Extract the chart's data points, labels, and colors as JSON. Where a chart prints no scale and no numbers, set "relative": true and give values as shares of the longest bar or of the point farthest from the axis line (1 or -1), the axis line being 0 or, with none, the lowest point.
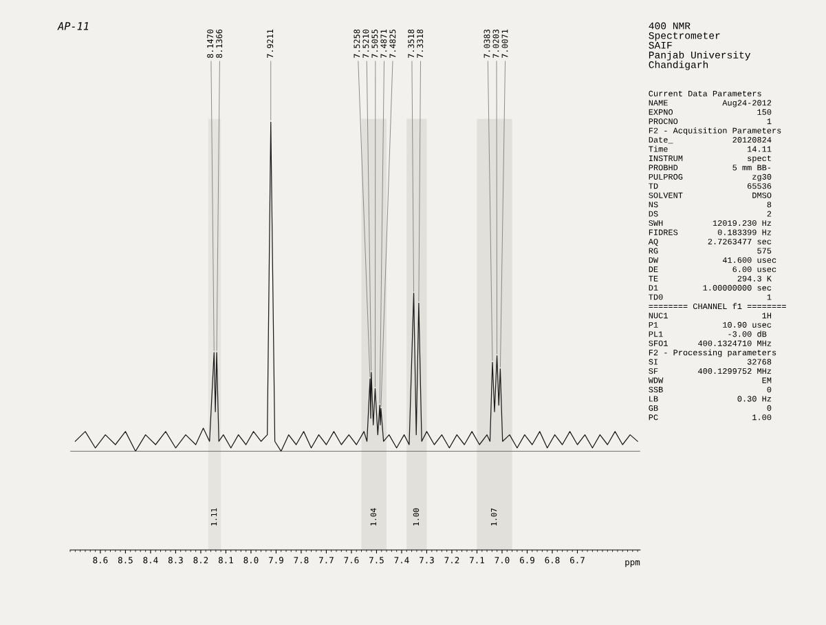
{
  "chart_data": {
    "type": "line",
    "title": "AP-11",
    "xlabel": "ppm",
    "relative": true,
    "xlim": [
      8.72,
      6.45
    ],
    "xticks": [
      8.6,
      8.5,
      8.4,
      8.3,
      8.2,
      8.1,
      {
        "value": 8,
        "label": "8.0"
      },
      7.9,
      7.8,
      7.7,
      7.6,
      7.5,
      7.4,
      7.3,
      7.2,
      7.1,
      {
        "value": 7,
        "label": "7.0"
      },
      6.9,
      6.8,
      6.7
    ],
    "bands": [
      {
        "axis": "x",
        "from": 8.17,
        "to": 8.12,
        "label": "1.11",
        "color": "#e6e4de"
      },
      {
        "axis": "x",
        "from": 7.56,
        "to": 7.46,
        "label": "1.04",
        "color": "#e2e0da"
      },
      {
        "axis": "x",
        "from": 7.38,
        "to": 7.3,
        "label": "1.00",
        "color": "#e2e0da"
      },
      {
        "axis": "x",
        "from": 7.1,
        "to": 6.96,
        "label": "1.07",
        "color": "#e2e0da"
      }
    ],
    "series": [
      {
        "color": "#1a1a1a",
        "x": [
          8.7,
          8.66,
          8.62,
          8.58,
          8.54,
          8.5,
          8.46,
          8.42,
          8.38,
          8.34,
          8.3,
          8.26,
          8.22,
          8.19,
          8.165,
          8.147,
          8.1418,
          8.1366,
          8.128,
          8.11,
          8.08,
          8.05,
          8.02,
          7.99,
          7.96,
          7.935,
          7.9211,
          7.905,
          7.88,
          7.85,
          7.82,
          7.79,
          7.76,
          7.73,
          7.7,
          7.67,
          7.64,
          7.61,
          7.58,
          7.55,
          7.538,
          7.5258,
          7.523,
          7.521,
          7.513,
          7.5055,
          7.495,
          7.4871,
          7.485,
          7.4825,
          7.472,
          7.45,
          7.42,
          7.39,
          7.37,
          7.3518,
          7.3418,
          7.3318,
          7.32,
          7.3,
          7.27,
          7.24,
          7.21,
          7.18,
          7.15,
          7.12,
          7.09,
          7.06,
          7.048,
          7.0383,
          7.03,
          7.0203,
          7.013,
          7.0071,
          6.998,
          6.97,
          6.94,
          6.91,
          6.88,
          6.85,
          6.82,
          6.79,
          6.76,
          6.73,
          6.7,
          6.67,
          6.64,
          6.61,
          6.58,
          6.55,
          6.52,
          6.49,
          6.46
        ],
        "values": [
          0.03,
          0.06,
          0.01,
          0.05,
          0.02,
          0.06,
          0.0,
          0.05,
          0.02,
          0.06,
          0.01,
          0.05,
          0.02,
          0.07,
          0.03,
          0.3,
          0.12,
          0.3,
          0.03,
          0.05,
          0.01,
          0.05,
          0.02,
          0.06,
          0.03,
          0.05,
          1.0,
          0.03,
          0.0,
          0.05,
          0.02,
          0.06,
          0.01,
          0.05,
          0.02,
          0.06,
          0.02,
          0.05,
          0.02,
          0.06,
          0.03,
          0.22,
          0.1,
          0.24,
          0.08,
          0.19,
          0.05,
          0.14,
          0.08,
          0.13,
          0.03,
          0.05,
          0.01,
          0.05,
          0.02,
          0.48,
          0.05,
          0.45,
          0.03,
          0.06,
          0.02,
          0.05,
          0.01,
          0.05,
          0.02,
          0.06,
          0.02,
          0.05,
          0.03,
          0.27,
          0.12,
          0.29,
          0.14,
          0.25,
          0.03,
          0.05,
          0.01,
          0.05,
          0.02,
          0.06,
          0.01,
          0.05,
          0.02,
          0.06,
          0.02,
          0.05,
          0.01,
          0.05,
          0.02,
          0.06,
          0.02,
          0.05,
          0.03
        ]
      }
    ],
    "annotations": [
      {
        "text": "8.1470",
        "x": 8.147,
        "y": 0.3
      },
      {
        "text": "8.1366",
        "x": 8.1366,
        "y": 0.3
      },
      {
        "text": "7.9211",
        "x": 7.9211,
        "y": 1.0
      },
      {
        "text": "7.5258",
        "x": 7.5258,
        "y": 0.22
      },
      {
        "text": "7.5210",
        "x": 7.521,
        "y": 0.24
      },
      {
        "text": "7.5055",
        "x": 7.5055,
        "y": 0.19
      },
      {
        "text": "7.4871",
        "x": 7.4871,
        "y": 0.14
      },
      {
        "text": "7.4825",
        "x": 7.4825,
        "y": 0.13
      },
      {
        "text": "7.3518",
        "x": 7.3518,
        "y": 0.48
      },
      {
        "text": "7.3318",
        "x": 7.3318,
        "y": 0.45
      },
      {
        "text": "7.0383",
        "x": 7.0383,
        "y": 0.27
      },
      {
        "text": "7.0203",
        "x": 7.0203,
        "y": 0.29
      },
      {
        "text": "7.0071",
        "x": 7.0071,
        "y": 0.25
      },
      "400 NMR\nSpectrometer\nSAIF\nPanjab University\nChandigarh",
      "Current Data Parameters",
      "NAME           Aug24-2012",
      "EXPNO                 150",
      "PROCNO                  1",
      "F2 - Acquisition Parameters",
      "Date_            20120824",
      "Time                14.11",
      "INSTRUM             spect",
      "PROBHD           5 mm BB-",
      "PULPROG              zg30",
      "TD                  65536",
      "SOLVENT              DMSO",
      "NS                      8",
      "DS                      2",
      "SWH          12019.230 Hz",
      "FIDRES        0.183399 Hz",
      "AQ          2.7263477 sec",
      "RG                    575",
      "DW             41.600 usec",
      "DE               6.00 usec",
      "TE                294.3 K",
      "D1         1.00000000 sec",
      "TD0                     1",
      "======== CHANNEL f1 ========",
      "NUC1                   1H",
      "P1             10.90 usec",
      "PL1             -3.00 dB",
      "SFO1      400.1324710 MHz",
      "F2 - Processing parameters",
      "SI                  32768",
      "SF        400.1299752 MHz",
      "WDW                    EM",
      "SSB                     0",
      "LB                0.30 Hz",
      "GB                      0",
      "PC                   1.00"
    ]
  }
}
